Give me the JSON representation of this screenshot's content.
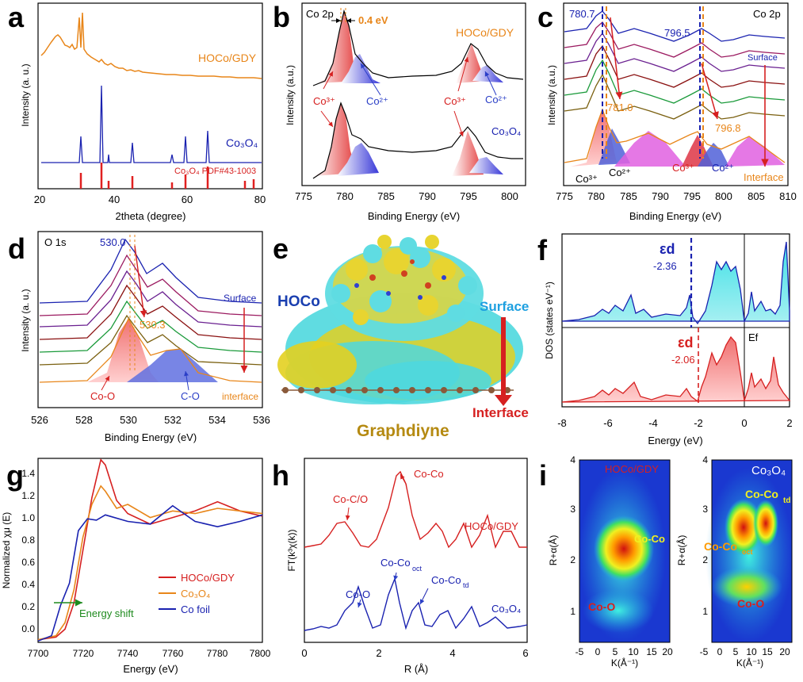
{
  "panels": {
    "a": {
      "letter": "a",
      "xlabel": "2theta (degree)",
      "ylabel": "Intensity (a. u.)",
      "xticks": [
        "20",
        "40",
        "60",
        "80"
      ],
      "series_labels": [
        "HOCo/GDY",
        "Co₃O₄",
        "Co₃O₄ PDF#43-1003"
      ]
    },
    "b": {
      "letter": "b",
      "title": "Co 2p",
      "xlabel": "Binding Energy (eV)",
      "ylabel": "Intensity (a.u.)",
      "xticks": [
        "775",
        "780",
        "785",
        "790",
        "795",
        "800"
      ],
      "shift_label": "0.4 eV",
      "labels": [
        "HOCo/GDY",
        "Co₃O₄",
        "Co³⁺",
        "Co²⁺",
        "Co³⁺",
        "Co²⁺"
      ]
    },
    "c": {
      "letter": "c",
      "title": "Co 2p",
      "xlabel": "Binding Energy (eV)",
      "ylabel": "Intensity (a.u.)",
      "xticks": [
        "775",
        "780",
        "785",
        "790",
        "795",
        "800",
        "805",
        "810"
      ],
      "labels": [
        "780.7",
        "796.5",
        "781.0",
        "796.8",
        "Surface",
        "Interface",
        "Co³⁺",
        "Co²⁺",
        "Co³⁺",
        "Co²⁺"
      ]
    },
    "d": {
      "letter": "d",
      "title": "O 1s",
      "xlabel": "Binding Energy (eV)",
      "ylabel": "Intensity (a. u.)",
      "xticks": [
        "526",
        "528",
        "530",
        "532",
        "534",
        "536"
      ],
      "labels": [
        "530.0",
        "530.3",
        "Surface",
        "interface",
        "Co-O",
        "C-O"
      ]
    },
    "e": {
      "letter": "e",
      "labels": [
        "HOCo",
        "Surface",
        "Interface",
        "Graphdiyne"
      ]
    },
    "f": {
      "letter": "f",
      "xlabel": "Energy (eV)",
      "ylabel": "DOS (states eV⁻¹)",
      "xticks": [
        "-8",
        "-6",
        "-4",
        "-2",
        "0",
        "2"
      ],
      "labels": [
        "εd",
        "-2.36",
        "εd",
        "-2.06",
        "Ef"
      ]
    },
    "g": {
      "letter": "g",
      "xlabel": "Energy (eV)",
      "ylabel": "Normalized χμ (E)",
      "xticks": [
        "7700",
        "7720",
        "7740",
        "7760",
        "7780",
        "7800"
      ],
      "yticks": [
        "0.0",
        "0.2",
        "0.4",
        "0.6",
        "0.8",
        "1.0",
        "1.2",
        "1.4"
      ],
      "legend": [
        "HOCo/GDY",
        "Co₃O₄",
        "Co foil"
      ],
      "arrow_label": "Energy shift"
    },
    "h": {
      "letter": "h",
      "xlabel": "R (Å)",
      "ylabel": "FT(k³χ(k))",
      "xticks": [
        "0",
        "2",
        "4",
        "6"
      ],
      "labels": [
        "Co-C/O",
        "Co-Co",
        "HOCo/GDY",
        "Co-O",
        "Co-Co",
        "oct",
        "Co-Co",
        "td",
        "Co₃O₄"
      ]
    },
    "i": {
      "letter": "i",
      "xlabel": "K(Å⁻¹)",
      "ylabel": "R+α(Å)",
      "xticks": [
        "-5",
        "0",
        "5",
        "10",
        "15",
        "20"
      ],
      "yticks": [
        "1",
        "2",
        "3",
        "4"
      ],
      "left_labels": [
        "HOCo/GDY",
        "Co-Co",
        "Co-O"
      ],
      "right_labels": [
        "Co₃O₄",
        "Co-Co",
        "td",
        "Co-Co",
        "oct",
        "Co-O"
      ]
    }
  },
  "colors": {
    "hoco": "#e8861a",
    "co3o4": "#1a22b0",
    "red": "#d62020",
    "blue": "#2b3fc7",
    "cyan": "#45d6dc",
    "yellow": "#e8d21e",
    "gold": "#b58a12",
    "green": "#1e8a1e"
  },
  "chart_data": [
    {
      "panel": "a",
      "type": "line",
      "xlim": [
        20,
        80
      ],
      "series": [
        {
          "name": "HOCo/GDY",
          "x": [
            20,
            22,
            24,
            25,
            26,
            28,
            30,
            31,
            31.5,
            32,
            34,
            36,
            38,
            40,
            45,
            50,
            55,
            60,
            65,
            70,
            75,
            80
          ],
          "y": [
            0.75,
            0.85,
            0.97,
            1.0,
            0.96,
            0.85,
            0.78,
            0.98,
            0.8,
            0.78,
            0.72,
            0.68,
            0.64,
            0.62,
            0.56,
            0.53,
            0.5,
            0.49,
            0.47,
            0.46,
            0.45,
            0.44
          ]
        },
        {
          "name": "Co₃O₄",
          "x": [
            20,
            31.2,
            36.8,
            38.5,
            44.8,
            55.6,
            59.3,
            65.2,
            80
          ],
          "y": [
            0,
            0.22,
            0.68,
            0.1,
            0.2,
            0.1,
            0.25,
            0.27,
            0
          ]
        },
        {
          "name": "Co₃O₄ PDF#43-1003",
          "x": [
            19,
            31.3,
            36.8,
            38.6,
            44.8,
            55.7,
            59.4,
            65.2,
            77.3
          ],
          "y": [
            0,
            0.15,
            0.45,
            0.05,
            0.12,
            0.05,
            0.18,
            0.25,
            0.08
          ]
        }
      ]
    },
    {
      "panel": "b",
      "type": "line",
      "xlim": [
        775,
        802
      ],
      "series": [
        {
          "name": "HOCo/GDY",
          "peaks": [
            780.4,
            782.0,
            795.6,
            797.2
          ]
        },
        {
          "name": "Co₃O₄",
          "peaks": [
            780.0,
            781.8,
            795.2,
            797.0
          ]
        }
      ]
    },
    {
      "panel": "c",
      "type": "line",
      "xlim": [
        775,
        810
      ],
      "series": [
        {
          "name": "HOCo/GDY",
          "peaks": [
            780.7,
            796.5
          ]
        },
        {
          "name": "Co₃O₄",
          "peaks": [
            781.0,
            796.8
          ]
        }
      ]
    },
    {
      "panel": "d",
      "type": "line",
      "xlim": [
        526,
        536
      ],
      "series": [
        {
          "name": "Co-O",
          "peak": 530.3
        },
        {
          "name": "C-O",
          "peak": 532.2
        }
      ]
    },
    {
      "panel": "f",
      "type": "area",
      "xlim": [
        -8,
        2
      ],
      "series": [
        {
          "d_band_center": -2.36
        },
        {
          "d_band_center": -2.06
        }
      ]
    },
    {
      "panel": "g",
      "type": "line",
      "xlim": [
        7700,
        7800
      ],
      "ylim": [
        0,
        1.4
      ],
      "series": [
        {
          "name": "HOCo/GDY",
          "x": [
            7700,
            7708,
            7712,
            7716,
            7720,
            7724,
            7728,
            7730,
            7735,
            7740,
            7750,
            7760,
            7770,
            7780,
            7790,
            7800
          ],
          "y": [
            0.02,
            0.04,
            0.1,
            0.3,
            0.7,
            1.1,
            1.39,
            1.35,
            1.08,
            0.98,
            0.9,
            0.95,
            1.0,
            1.07,
            1.0,
            0.96
          ]
        },
        {
          "name": "Co₃O₄",
          "x": [
            7700,
            7708,
            7712,
            7716,
            7720,
            7724,
            7728,
            7730,
            7735,
            7740,
            7750,
            7760,
            7770,
            7780,
            7790,
            7800
          ],
          "y": [
            0.02,
            0.05,
            0.15,
            0.4,
            0.8,
            1.05,
            1.19,
            1.15,
            1.02,
            1.05,
            0.95,
            1.0,
            0.98,
            1.02,
            1.0,
            0.98
          ]
        },
        {
          "name": "Co foil",
          "x": [
            7700,
            7706,
            7710,
            7714,
            7718,
            7722,
            7726,
            7730,
            7740,
            7750,
            7760,
            7770,
            7780,
            7790,
            7800
          ],
          "y": [
            0.01,
            0.05,
            0.28,
            0.45,
            0.85,
            0.94,
            0.93,
            0.97,
            0.92,
            0.9,
            1.04,
            0.92,
            0.88,
            0.92,
            0.97
          ]
        }
      ]
    },
    {
      "panel": "h",
      "type": "line",
      "xlim": [
        0,
        6
      ],
      "series": [
        {
          "name": "HOCo/GDY",
          "peaks": [
            1.4,
            2.6
          ]
        },
        {
          "name": "Co₃O₄",
          "peaks": [
            1.5,
            2.5,
            3.1
          ]
        }
      ]
    },
    {
      "panel": "i",
      "type": "heatmap",
      "xlim": [
        -5,
        20
      ],
      "ylim": [
        0.5,
        4
      ]
    }
  ]
}
